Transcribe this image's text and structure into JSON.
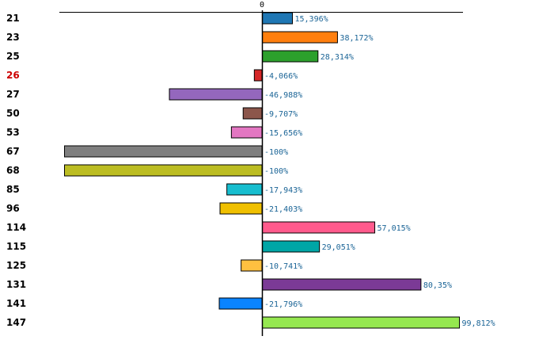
{
  "chart_data": {
    "type": "bar",
    "orientation": "horizontal",
    "title": "",
    "xlabel": "",
    "ylabel": "",
    "xlim": [
      -100,
      100
    ],
    "zero_tick_label": "0",
    "grid": false,
    "legend": "none",
    "categories": [
      "21",
      "23",
      "25",
      "26",
      "27",
      "50",
      "53",
      "67",
      "68",
      "85",
      "96",
      "114",
      "115",
      "125",
      "131",
      "141",
      "147"
    ],
    "values": [
      15.396,
      38.172,
      28.314,
      -4.066,
      -46.988,
      -9.707,
      -15.656,
      -100,
      -100,
      -17.943,
      -21.403,
      57.015,
      29.051,
      -10.741,
      80.35,
      -21.796,
      99.812
    ],
    "value_labels": [
      "15,396%",
      "38,172%",
      "28,314%",
      "-4,066%",
      "-46,988%",
      "-9,707%",
      "-15,656%",
      "-100%",
      "-100%",
      "-17,943%",
      "-21,403%",
      "57,015%",
      "29,051%",
      "-10,741%",
      "80,35%",
      "-21,796%",
      "99,812%"
    ],
    "bar_colors": [
      "#1f77b4",
      "#ff7f0e",
      "#2ca02c",
      "#d62728",
      "#9467bd",
      "#8c564b",
      "#e377c2",
      "#7f7f7f",
      "#bcbd22",
      "#17becf",
      "#f0c000",
      "#ff5a8c",
      "#00a6a6",
      "#ffc040",
      "#7b3a96",
      "#0a84ff",
      "#95e850"
    ],
    "label_colors": [
      "#000000",
      "#000000",
      "#000000",
      "#cc0000",
      "#000000",
      "#000000",
      "#000000",
      "#000000",
      "#000000",
      "#000000",
      "#000000",
      "#000000",
      "#000000",
      "#000000",
      "#000000",
      "#000000",
      "#000000"
    ],
    "value_label_color": "#1a6496",
    "bar_border_color": "#000000",
    "axis_color": "#000000"
  }
}
